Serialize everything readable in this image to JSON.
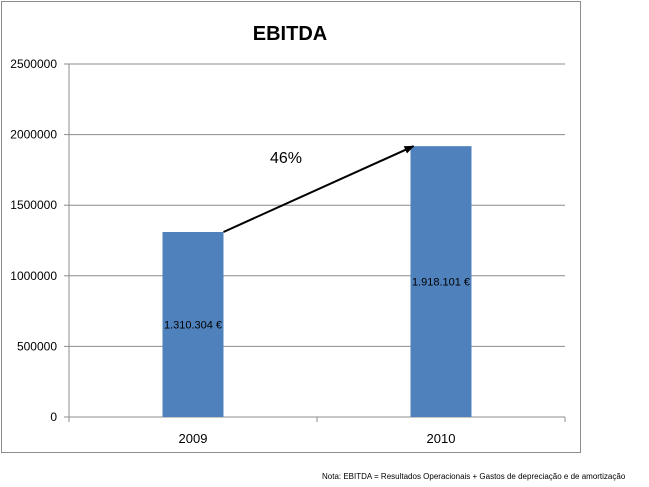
{
  "chart_data": {
    "type": "bar",
    "title": "EBITDA",
    "categories": [
      "2009",
      "2010"
    ],
    "values": [
      1310304,
      1918101
    ],
    "data_labels": [
      "1.310.304 €",
      "1.918.101 €"
    ],
    "ylim": [
      0,
      2500000
    ],
    "yticks": [
      0,
      500000,
      1000000,
      1500000,
      2000000,
      2500000
    ],
    "ytick_labels": [
      "0",
      "500000",
      "1000000",
      "1500000",
      "2000000",
      "2500000"
    ],
    "grid": true,
    "bar_color": "#4f81bd",
    "annotation": {
      "text": "46%",
      "arrow_from": "2009",
      "arrow_to": "2010"
    }
  },
  "footnote": "Nota: EBITDA = Resultados Operacionais + Gastos de depreciação e de amortização"
}
